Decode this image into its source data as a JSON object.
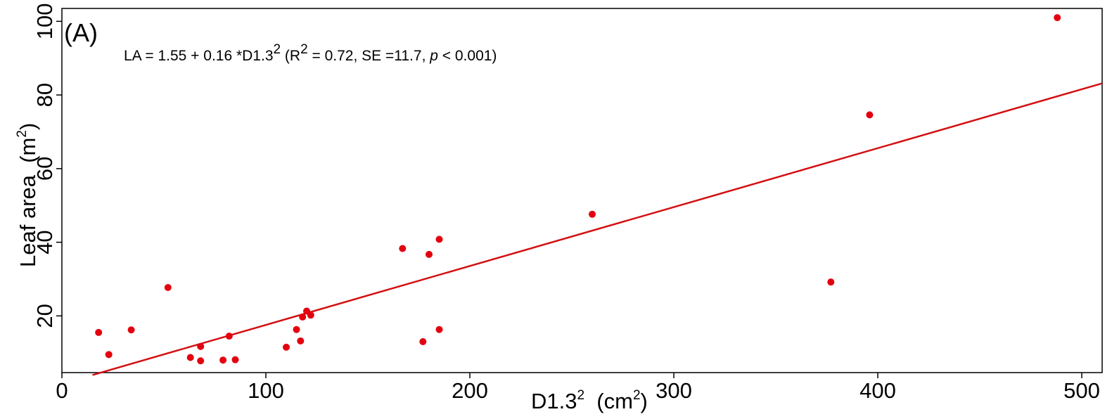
{
  "chart_data": {
    "type": "scatter",
    "panel_label": "(A)",
    "equation": {
      "lhs": "LA = 1.55 + 0.16 *D1.3",
      "lhs_sup": "2",
      "r_open": " (R",
      "r_sup": "2",
      "stats": " = 0.72, SE =11.7, ",
      "p_italic": "p",
      "p_rest": " < 0.001)"
    },
    "xlabel": {
      "main": "D1.3",
      "sup": "2",
      "unit_open": "  (cm",
      "unit_sup": "2",
      "unit_close": ")"
    },
    "ylabel": {
      "main": "Leaf area  (m",
      "sup": "2",
      "close": ")"
    },
    "xlim": [
      0,
      510
    ],
    "ylim": [
      4.6,
      103.5
    ],
    "xticks": [
      0,
      100,
      200,
      300,
      400,
      500
    ],
    "yticks": [
      20,
      40,
      60,
      80,
      100
    ],
    "x": [
      18,
      23,
      34,
      52,
      63,
      68,
      68,
      79,
      82,
      85,
      110,
      115,
      117,
      118,
      120,
      122,
      167,
      177,
      180,
      185,
      185,
      260,
      377,
      396,
      488
    ],
    "y": [
      15.5,
      9.5,
      16.2,
      27.7,
      8.7,
      11.7,
      7.8,
      8.0,
      14.5,
      8.1,
      11.5,
      16.3,
      13.2,
      19.7,
      21.3,
      20.2,
      38.3,
      13.0,
      36.7,
      40.8,
      16.3,
      47.6,
      29.2,
      74.6,
      101.0
    ],
    "fit_line": {
      "intercept": 1.55,
      "slope": 0.16,
      "x_start": 15,
      "x_end": 510
    },
    "colors": {
      "points": "#e3000f",
      "line": "#d40f12",
      "axis": "#000000"
    },
    "grid": false
  }
}
